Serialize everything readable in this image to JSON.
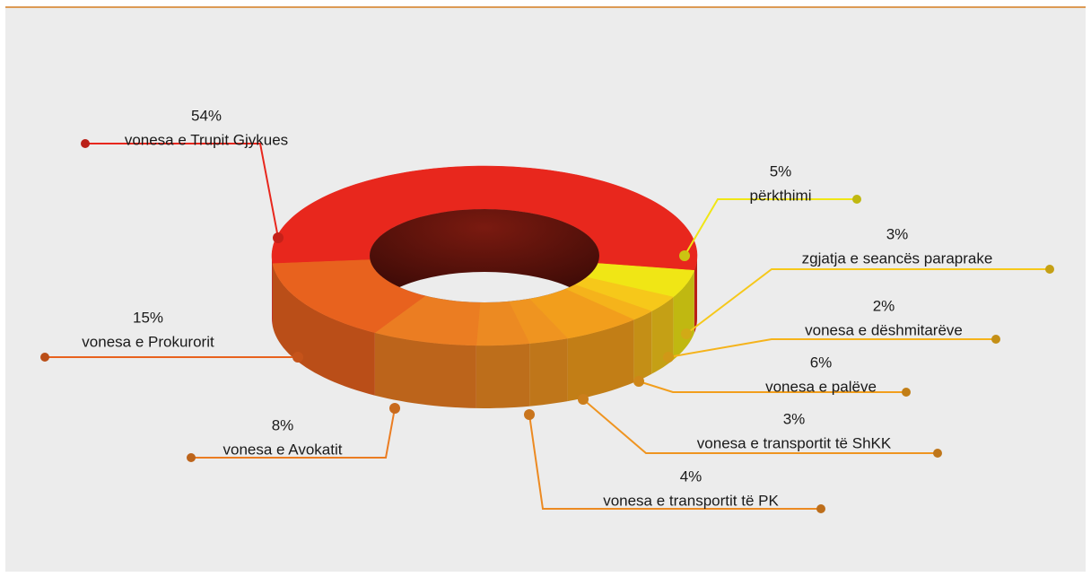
{
  "chart_data": {
    "type": "pie",
    "donut": true,
    "categories": [
      "vonesa e Trupit Gjykues",
      "përkthimi",
      "zgjatja e seancës paraprake",
      "vonesa e dëshmitarëve",
      "vonesa e palëve",
      "vonesa e transportit të ShKK",
      "vonesa e transportit të PK",
      "vonesa e Avokatit",
      "vonesa e Prokurorit"
    ],
    "values": [
      54,
      5,
      3,
      2,
      6,
      3,
      4,
      8,
      15
    ],
    "value_labels": [
      "54%",
      "5%",
      "3%",
      "2%",
      "6%",
      "3%",
      "4%",
      "8%",
      "15%"
    ],
    "colors": [
      "#e8271d",
      "#f0e615",
      "#f6c81a",
      "#f5b31b",
      "#f29e1c",
      "#ef9420",
      "#ec8a22",
      "#eb7d22",
      "#e8621e"
    ]
  }
}
